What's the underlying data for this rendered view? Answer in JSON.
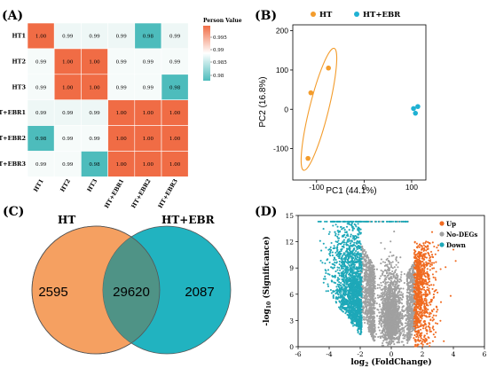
{
  "chart_data": [
    {
      "type": "heatmap",
      "panel_label": "(A)",
      "rows": [
        "HT1",
        "HT2",
        "HT3",
        "HT+EBR1",
        "HT+EBR2",
        "HT+EBR3"
      ],
      "cols": [
        "HT1",
        "HT2",
        "HT3",
        "HT+EBR1",
        "HT+EBR2",
        "HT+EBR3"
      ],
      "values": [
        [
          1.0,
          0.99,
          0.99,
          0.99,
          0.98,
          0.99
        ],
        [
          0.99,
          1.0,
          1.0,
          0.99,
          0.99,
          0.99
        ],
        [
          0.99,
          1.0,
          1.0,
          0.99,
          0.99,
          0.98
        ],
        [
          0.99,
          0.99,
          0.99,
          1.0,
          1.0,
          1.0
        ],
        [
          0.98,
          0.99,
          0.99,
          1.0,
          1.0,
          1.0
        ],
        [
          0.99,
          0.99,
          0.98,
          1.0,
          1.0,
          1.0
        ]
      ],
      "colorbar_title": "Person Value",
      "colorbar_ticks": [
        "0.995",
        "0.99",
        "0.985",
        "0.98"
      ],
      "colors": {
        "high": "#f06c45",
        "mid": "#ffffff",
        "low": "#4dbcbc"
      }
    },
    {
      "type": "scatter",
      "panel_label": "(B)",
      "xlabel": "PC1 (44.1%)",
      "ylabel": "PC2 (16.8%)",
      "xlim": [
        -150,
        130
      ],
      "ylim": [
        -180,
        215
      ],
      "xticks": [
        -100,
        0,
        100
      ],
      "yticks": [
        -100,
        0,
        100,
        200
      ],
      "series": [
        {
          "name": "HT",
          "color": "#f39c2c",
          "points": [
            [
              -112,
              42
            ],
            [
              -75,
              105
            ],
            [
              -118,
              -125
            ]
          ]
        },
        {
          "name": "HT+EBR",
          "color": "#1fb1d3",
          "points": [
            [
              104,
              2
            ],
            [
              113,
              7
            ],
            [
              108,
              -10
            ]
          ]
        }
      ],
      "ellipse": {
        "series": "HT",
        "cx": -95,
        "cy": 0,
        "rx": 20,
        "ry": 160,
        "angle_deg": 14
      }
    },
    {
      "type": "venn",
      "panel_label": "(C)",
      "sets": [
        {
          "name": "HT",
          "unique": "2595",
          "color": "#f5a061"
        },
        {
          "name": "HT+EBR",
          "unique": "2087",
          "color": "#21b3c0"
        }
      ],
      "intersection": "29620",
      "intersection_color": "#4f9386"
    },
    {
      "type": "scatter",
      "panel_label": "(D)",
      "title": "",
      "xlabel": "log2 (FoldChange)",
      "xlabel_main": "log",
      "xlabel_sub": "2",
      "xlabel_rest": " (FoldChange)",
      "ylabel": "-log10 (Significance)",
      "ylabel_main": "-log",
      "ylabel_sub": "10",
      "ylabel_rest": " (Significance)",
      "xlim": [
        -6,
        6
      ],
      "ylim": [
        0,
        15
      ],
      "xticks": [
        -6,
        -4,
        -2,
        0,
        2,
        4,
        6
      ],
      "yticks": [
        0,
        3,
        6,
        9,
        12,
        15
      ],
      "legend": "top-right",
      "series": [
        {
          "name": "Up",
          "color": "#f06a20"
        },
        {
          "name": "No-DEGs",
          "color": "#a0a0a0"
        },
        {
          "name": "Down",
          "color": "#1ea8b8"
        }
      ]
    }
  ]
}
